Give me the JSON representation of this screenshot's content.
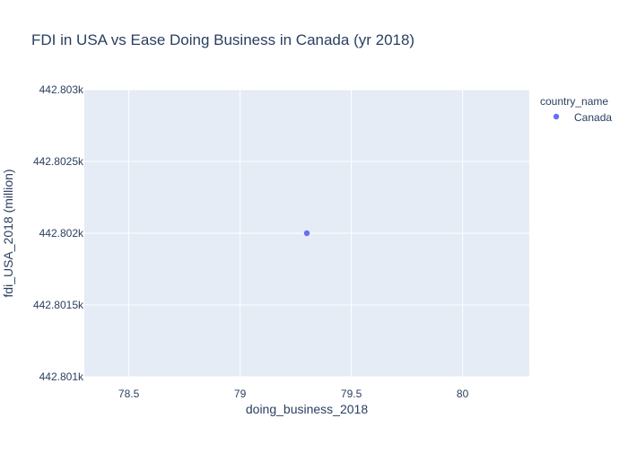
{
  "chart_data": {
    "type": "scatter",
    "title": "FDI in USA vs Ease Doing Business in Canada (yr 2018)",
    "xlabel": "doing_business_2018",
    "ylabel": "fdi_USA_2018 (million)",
    "xlim": [
      78.3,
      80.3
    ],
    "ylim": [
      442.801,
      442.803
    ],
    "x_ticks": [
      78.5,
      79,
      79.5,
      80
    ],
    "x_tick_labels": [
      "78.5",
      "79",
      "79.5",
      "80"
    ],
    "y_ticks": [
      442.801,
      442.8015,
      442.802,
      442.8025,
      442.803
    ],
    "y_tick_labels": [
      "442.801k",
      "442.8015k",
      "442.802k",
      "442.8025k",
      "442.803k"
    ],
    "grid": true,
    "legend": {
      "title": "country_name",
      "placement": "top-right",
      "entries": [
        "Canada"
      ]
    },
    "series": [
      {
        "name": "Canada",
        "color": "#636efa",
        "points": [
          {
            "x": 79.3,
            "y": 442.802
          }
        ]
      }
    ]
  }
}
